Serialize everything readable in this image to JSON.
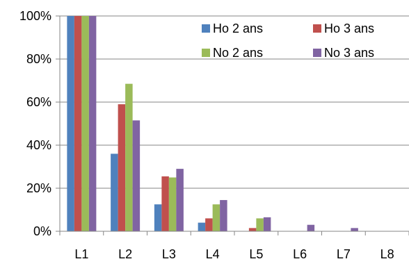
{
  "chart_data": {
    "type": "bar",
    "categories": [
      "L1",
      "L2",
      "L3",
      "L4",
      "L5",
      "L6",
      "L7",
      "L8"
    ],
    "series": [
      {
        "name": "Ho 2 ans",
        "color": "#4F81BD",
        "values": [
          100,
          36,
          12.5,
          4,
          0,
          0,
          0,
          0
        ]
      },
      {
        "name": "Ho 3 ans",
        "color": "#C0504D",
        "values": [
          100,
          59,
          25.5,
          6,
          1.5,
          0,
          0,
          0
        ]
      },
      {
        "name": "No 2 ans",
        "color": "#9BBB59",
        "values": [
          100,
          68.5,
          25,
          12.5,
          6,
          0,
          0,
          0
        ]
      },
      {
        "name": "No 3 ans",
        "color": "#8064A2",
        "values": [
          100,
          51.5,
          29,
          14.5,
          6.5,
          3,
          1.5,
          0
        ]
      }
    ],
    "y_ticks": [
      "0%",
      "20%",
      "40%",
      "60%",
      "80%",
      "100%"
    ],
    "ylim": [
      0,
      100
    ],
    "grid": true,
    "legend_position": "top-right"
  }
}
